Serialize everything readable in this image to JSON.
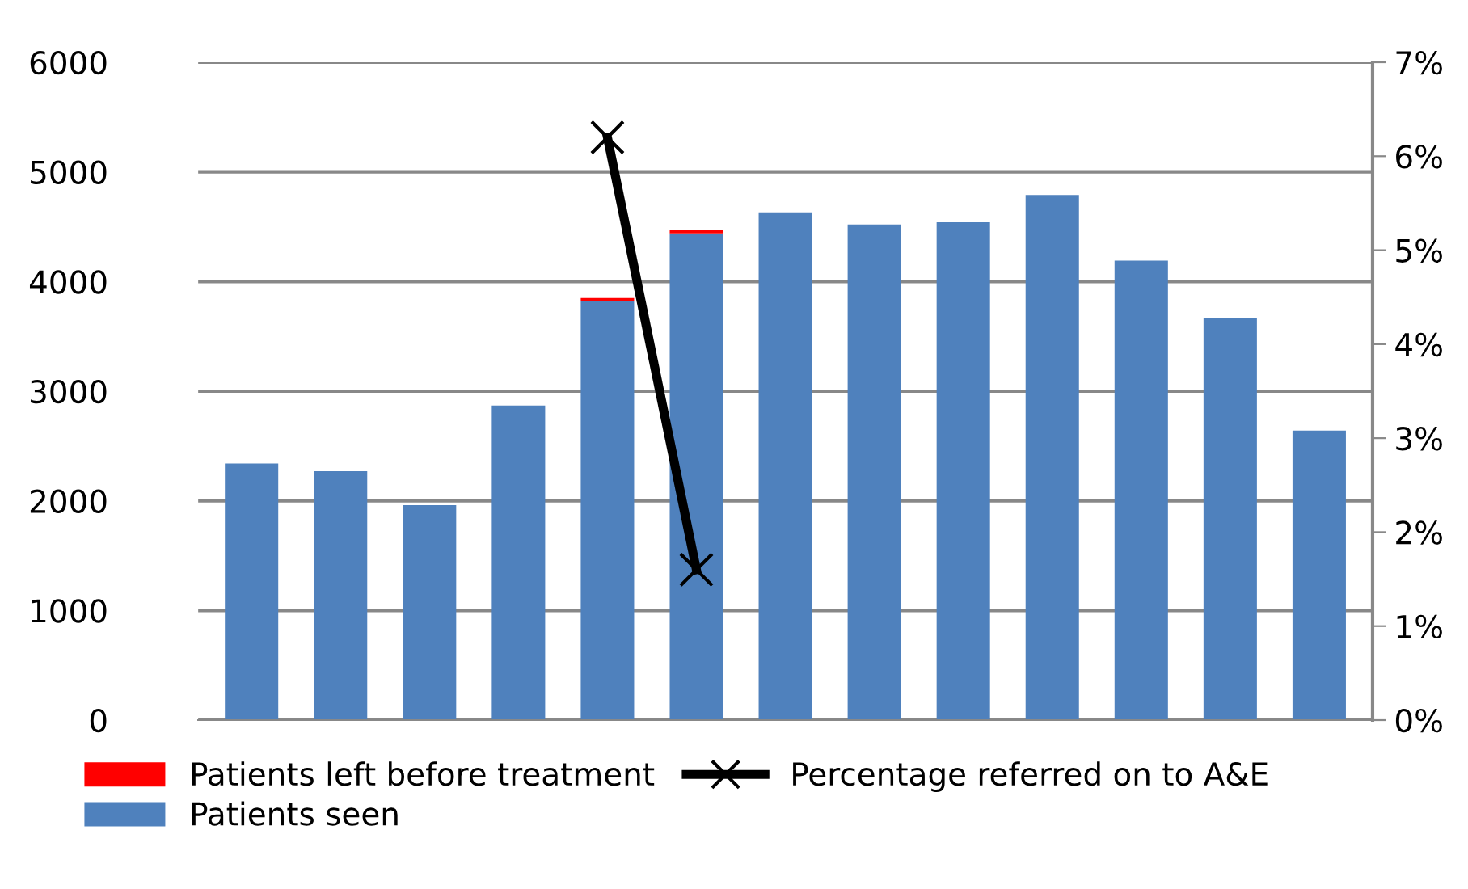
{
  "chart_data": {
    "type": "bar",
    "stacked": true,
    "categories": [
      null,
      null,
      null,
      null,
      null,
      null,
      null,
      null,
      null,
      null,
      null,
      null,
      null
    ],
    "series": [
      {
        "name": "Patients seen",
        "color": "#4f81bd",
        "values": [
          2340,
          2270,
          1960,
          2870,
          3820,
          4440,
          4630,
          4520,
          4540,
          4790,
          4190,
          3670,
          2640
        ]
      },
      {
        "name": "Patients left before treatment",
        "color": "#ff0000",
        "values": [
          null,
          null,
          null,
          null,
          30,
          30,
          null,
          null,
          null,
          null,
          null,
          null,
          null
        ]
      },
      {
        "name": "Percentage referred on to A&E",
        "type": "line",
        "axis": "y2",
        "color": "#000000",
        "marker": "cross",
        "values": [
          null,
          null,
          null,
          null,
          6.2,
          1.6,
          null,
          null,
          null,
          null,
          null,
          null,
          null
        ]
      }
    ],
    "ylim": [
      0,
      6000
    ],
    "yticks": [
      0,
      1000,
      2000,
      3000,
      4000,
      5000,
      6000
    ],
    "y2lim": [
      0,
      7
    ],
    "y2ticks": [
      {
        "value": 0,
        "label": "0%"
      },
      {
        "value": 1,
        "label": "1%"
      },
      {
        "value": 2,
        "label": "2%"
      },
      {
        "value": 3,
        "label": "3%"
      },
      {
        "value": 4,
        "label": "4%"
      },
      {
        "value": 5,
        "label": "5%"
      },
      {
        "value": 6,
        "label": "6%"
      },
      {
        "value": 7,
        "label": "7%"
      }
    ],
    "grid": "y",
    "legend": "bottom"
  }
}
